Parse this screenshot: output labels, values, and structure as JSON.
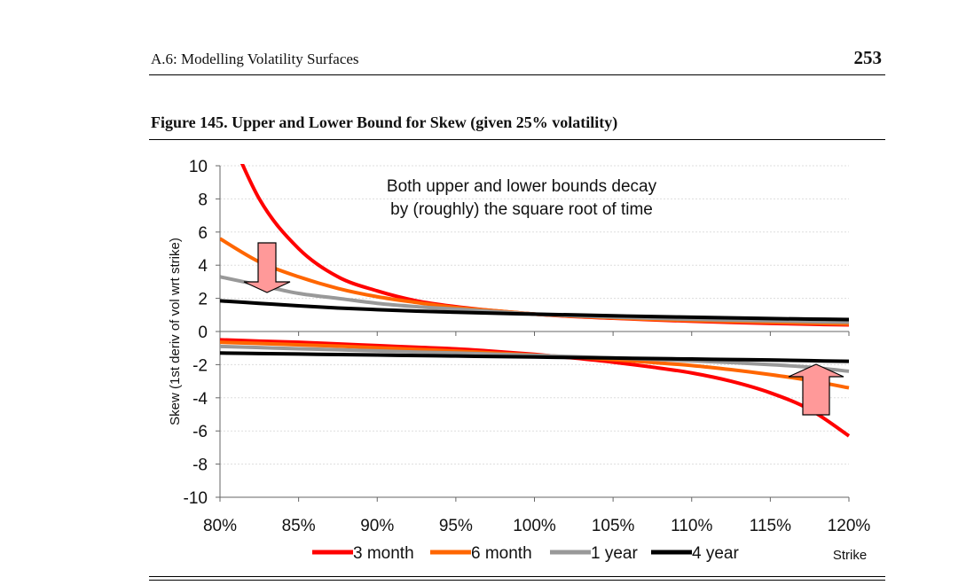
{
  "page": {
    "header": "A.6: Modelling Volatility Surfaces",
    "page_number": "253",
    "figure_title": "Figure 145. Upper and Lower Bound for Skew (given 25% volatility)"
  },
  "chart_data": {
    "type": "line",
    "ylabel": "Skew (1st deriv of vol wrt strike)",
    "xlabel": "Strike",
    "ylim": [
      -10,
      10
    ],
    "xlim": [
      80,
      120
    ],
    "y_ticks": [
      10,
      8,
      6,
      4,
      2,
      0,
      -2,
      -4,
      -6,
      -8,
      -10
    ],
    "x_ticks": [
      80,
      85,
      90,
      95,
      100,
      105,
      110,
      115,
      120
    ],
    "x_tick_labels": [
      "80%",
      "85%",
      "90%",
      "95%",
      "100%",
      "105%",
      "110%",
      "115%",
      "120%"
    ],
    "grid": "horizontal",
    "legend_position": "bottom",
    "annotation": [
      "Both upper and lower bounds decay",
      "by (roughly) the square root of time"
    ],
    "x": [
      80,
      82.5,
      85,
      87.5,
      90,
      92.5,
      95,
      97.5,
      100,
      102.5,
      105,
      107.5,
      110,
      112.5,
      115,
      117.5,
      120
    ],
    "series": [
      {
        "name": "3 month",
        "color": "#ff0000",
        "bound": "upper",
        "values": [
          13.2,
          8.0,
          5.0,
          3.3,
          2.45,
          1.85,
          1.5,
          1.25,
          1.05,
          0.9,
          0.8,
          0.7,
          0.62,
          0.55,
          0.49,
          0.44,
          0.4
        ]
      },
      {
        "name": "6 month",
        "color": "#ff6600",
        "bound": "upper",
        "values": [
          5.6,
          4.2,
          3.3,
          2.6,
          2.1,
          1.75,
          1.45,
          1.25,
          1.05,
          0.92,
          0.82,
          0.73,
          0.66,
          0.6,
          0.55,
          0.5,
          0.45
        ]
      },
      {
        "name": "1 year",
        "color": "#999999",
        "bound": "upper",
        "values": [
          3.3,
          2.8,
          2.3,
          2.0,
          1.7,
          1.5,
          1.35,
          1.2,
          1.05,
          0.95,
          0.87,
          0.8,
          0.74,
          0.69,
          0.65,
          0.6,
          0.56
        ]
      },
      {
        "name": "4 year",
        "color": "#000000",
        "bound": "upper",
        "values": [
          1.85,
          1.7,
          1.55,
          1.42,
          1.32,
          1.23,
          1.16,
          1.1,
          1.05,
          1.0,
          0.95,
          0.9,
          0.86,
          0.82,
          0.78,
          0.75,
          0.72
        ]
      },
      {
        "name": "3 month",
        "color": "#ff0000",
        "bound": "lower",
        "values": [
          -0.5,
          -0.58,
          -0.65,
          -0.75,
          -0.85,
          -0.95,
          -1.05,
          -1.2,
          -1.38,
          -1.6,
          -1.85,
          -2.15,
          -2.5,
          -3.0,
          -3.7,
          -4.7,
          -6.3
        ]
      },
      {
        "name": "6 month",
        "color": "#ff6600",
        "bound": "lower",
        "values": [
          -0.65,
          -0.72,
          -0.8,
          -0.88,
          -0.98,
          -1.08,
          -1.18,
          -1.3,
          -1.42,
          -1.55,
          -1.7,
          -1.87,
          -2.05,
          -2.3,
          -2.6,
          -2.95,
          -3.4
        ]
      },
      {
        "name": "1 year",
        "color": "#999999",
        "bound": "lower",
        "values": [
          -0.9,
          -0.97,
          -1.04,
          -1.1,
          -1.17,
          -1.24,
          -1.3,
          -1.37,
          -1.44,
          -1.52,
          -1.6,
          -1.68,
          -1.77,
          -1.87,
          -2.0,
          -2.15,
          -2.4
        ]
      },
      {
        "name": "4 year",
        "color": "#000000",
        "bound": "lower",
        "values": [
          -1.3,
          -1.33,
          -1.36,
          -1.39,
          -1.42,
          -1.45,
          -1.48,
          -1.51,
          -1.54,
          -1.57,
          -1.6,
          -1.63,
          -1.66,
          -1.69,
          -1.72,
          -1.76,
          -1.8
        ]
      }
    ]
  }
}
